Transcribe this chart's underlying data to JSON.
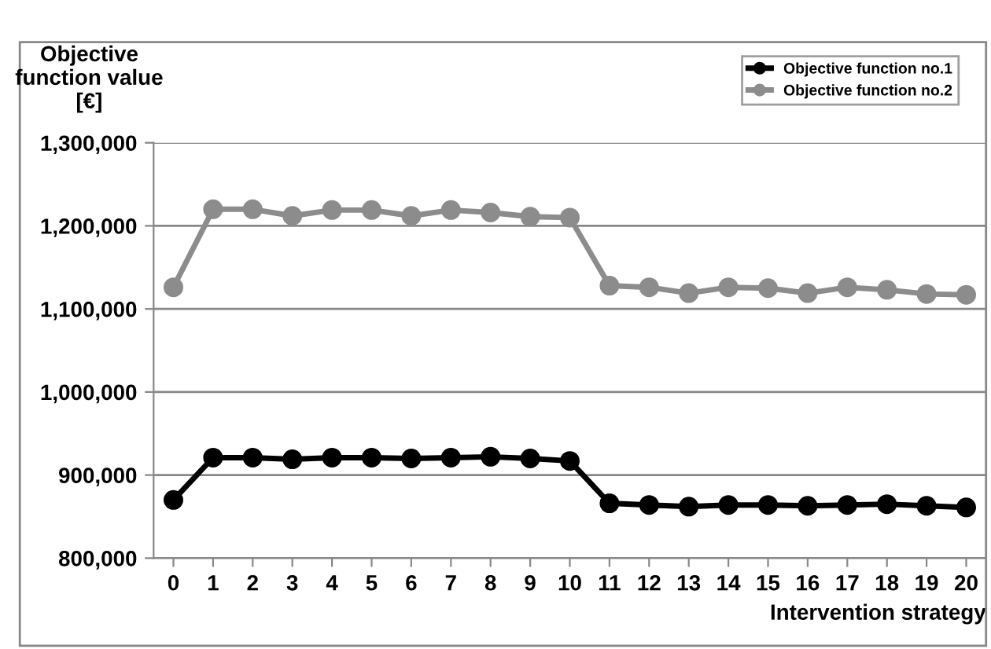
{
  "chart_data": {
    "type": "line",
    "xlabel": "Intervention strategy",
    "ylabel": "Objective function value [€]",
    "categories": [
      "0",
      "1",
      "2",
      "3",
      "4",
      "5",
      "6",
      "7",
      "8",
      "9",
      "10",
      "11",
      "12",
      "13",
      "14",
      "15",
      "16",
      "17",
      "18",
      "19",
      "20"
    ],
    "series": [
      {
        "name": "Objective function no.1",
        "color": "#000000",
        "values": [
          870000,
          921000,
          921000,
          919000,
          921000,
          921000,
          920000,
          921000,
          922000,
          920000,
          917000,
          866000,
          864000,
          862000,
          864000,
          864000,
          863000,
          864000,
          865000,
          863000,
          861000
        ]
      },
      {
        "name": "Objective function no.2",
        "color": "#8c8c8c",
        "values": [
          1126000,
          1220000,
          1220000,
          1212000,
          1219000,
          1219000,
          1212000,
          1219000,
          1216000,
          1211000,
          1210000,
          1128000,
          1126000,
          1119000,
          1126000,
          1125000,
          1119000,
          1126000,
          1123000,
          1118000,
          1117000
        ]
      }
    ],
    "ylim": [
      800000,
      1300000
    ],
    "yticks": [
      {
        "value": 800000,
        "label": "800,000"
      },
      {
        "value": 900000,
        "label": "900,000"
      },
      {
        "value": 1000000,
        "label": "1,000,000"
      },
      {
        "value": 1100000,
        "label": "1,100,000"
      },
      {
        "value": 1200000,
        "label": "1,200,000"
      },
      {
        "value": 1300000,
        "label": "1,300,000"
      }
    ],
    "grid": "y",
    "legend": "top right",
    "marker": "circle",
    "line_style": "solid"
  }
}
